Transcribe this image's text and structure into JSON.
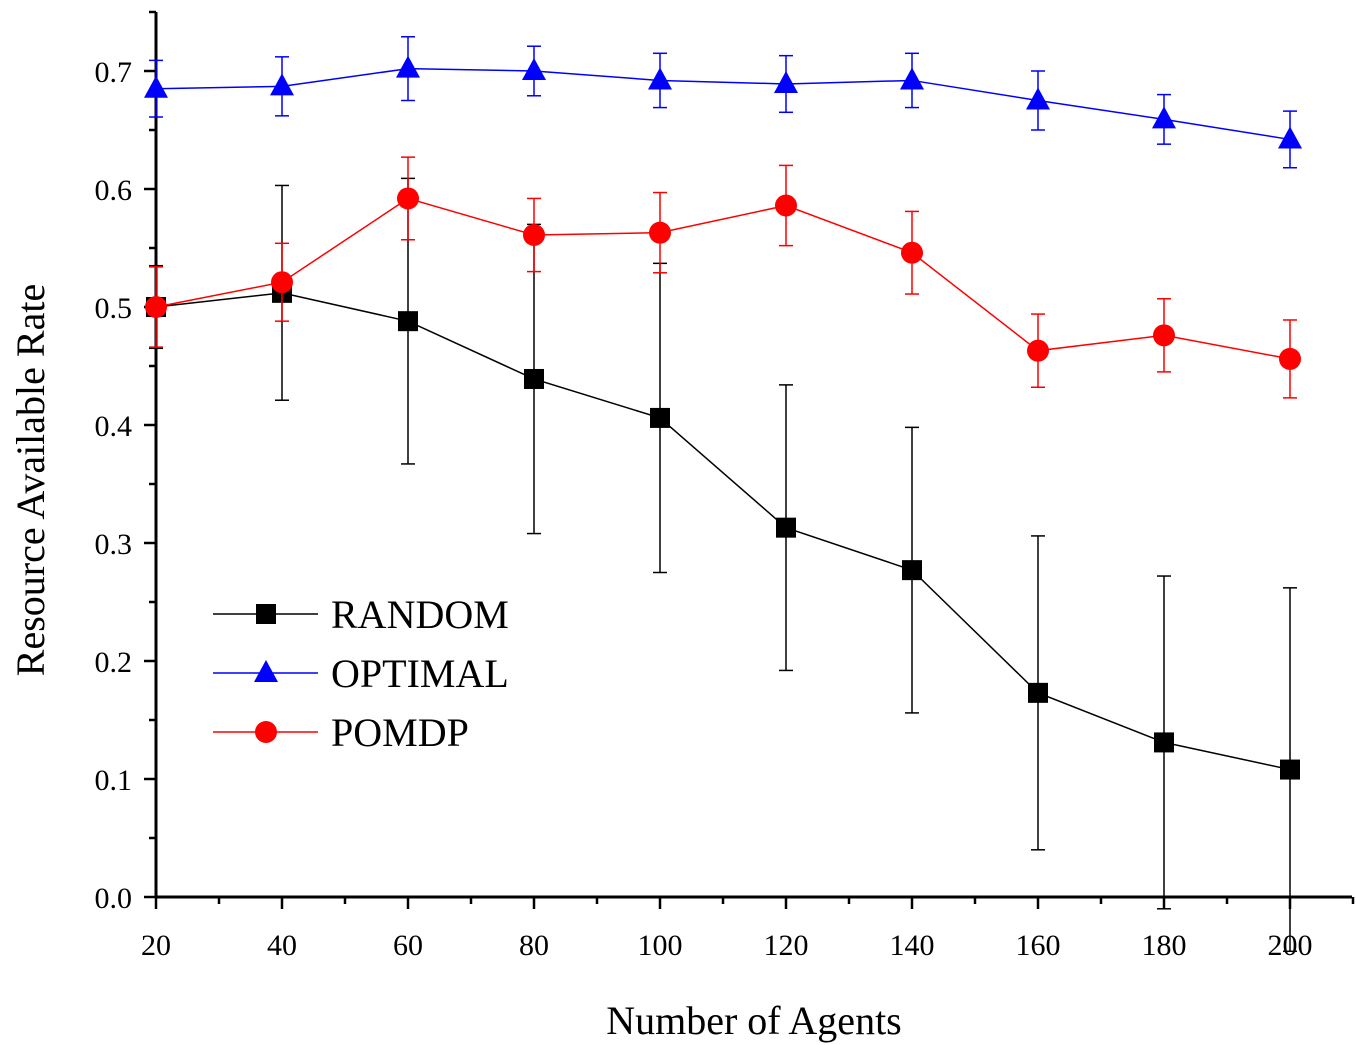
{
  "chart_data": {
    "type": "line",
    "title": "",
    "xlabel": "Number of Agents",
    "ylabel": "Resource Available Rate",
    "x": [
      20,
      40,
      60,
      80,
      100,
      120,
      140,
      160,
      180,
      200
    ],
    "x_ticks": [
      "20",
      "40",
      "60",
      "80",
      "100",
      "120",
      "140",
      "160",
      "180",
      "200"
    ],
    "y_ticks": [
      "0.0",
      "0.1",
      "0.2",
      "0.3",
      "0.4",
      "0.5",
      "0.6",
      "0.7"
    ],
    "xlim": [
      20,
      210
    ],
    "ylim": [
      0,
      0.75
    ],
    "grid": false,
    "legend_position": "lower-left",
    "series": [
      {
        "name": "RANDOM",
        "color": "#000000",
        "marker": "square",
        "values": [
          0.5,
          0.512,
          0.488,
          0.439,
          0.406,
          0.313,
          0.277,
          0.173,
          0.131,
          0.108
        ],
        "errors": [
          0.035,
          0.091,
          0.121,
          0.131,
          0.131,
          0.121,
          0.121,
          0.133,
          0.141,
          0.154
        ]
      },
      {
        "name": "OPTIMAL",
        "color": "#0000ff",
        "marker": "triangle",
        "values": [
          0.685,
          0.687,
          0.702,
          0.7,
          0.692,
          0.689,
          0.692,
          0.675,
          0.659,
          0.642
        ],
        "errors": [
          0.024,
          0.025,
          0.027,
          0.021,
          0.023,
          0.024,
          0.023,
          0.025,
          0.021,
          0.024
        ]
      },
      {
        "name": "POMDP",
        "color": "#ff0000",
        "marker": "circle",
        "values": [
          0.5,
          0.521,
          0.592,
          0.561,
          0.563,
          0.586,
          0.546,
          0.463,
          0.476,
          0.456
        ],
        "errors": [
          0.034,
          0.033,
          0.035,
          0.031,
          0.034,
          0.034,
          0.035,
          0.031,
          0.031,
          0.033
        ]
      }
    ]
  }
}
